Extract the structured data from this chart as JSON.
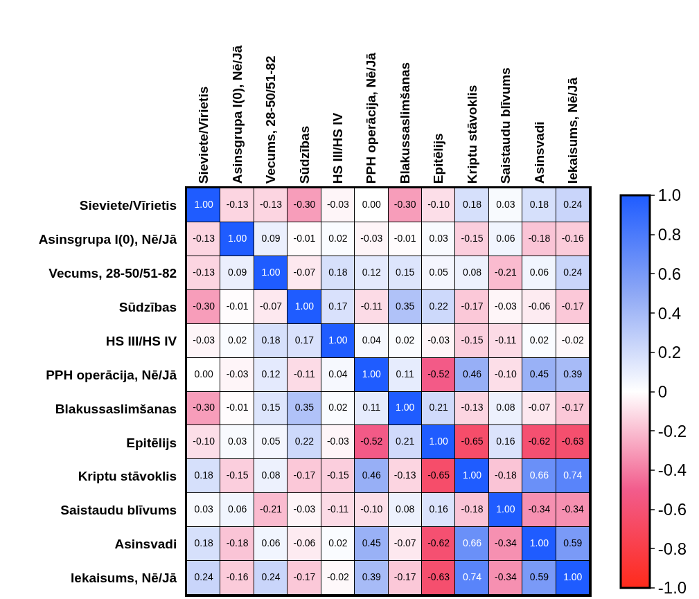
{
  "chart_data": {
    "type": "heatmap",
    "categories": [
      "Sieviete/Vīrietis",
      "Asinsgrupa I(0), Nē/Jā",
      "Vecums, 28-50/51-82",
      "Sūdzības",
      "HS III/HS IV",
      "PPH operācija, Nē/Jā",
      "Blakussaslimšanas",
      "Epitēlijs",
      "Kriptu stāvoklis",
      "Saistaudu blīvums",
      "Asinsvadi",
      "Iekaisums, Nē/Jā"
    ],
    "y_categories": [
      "Sieviete/Vīrietis",
      "Asinsgrupa I(0), Nē/Jā",
      "Vecums, 28-50/51-82",
      "Sūdzības",
      "HS III/HS IV",
      "PPH operācija, Nē/Jā",
      "Blakussaslimšanas",
      "Epitēlijs",
      "Kriptu stāvoklis",
      "Saistaudu blīvums",
      "Asinsvadi",
      "Iekaisums, Nē/Jā"
    ],
    "cells": [
      [
        1.0,
        -0.13,
        -0.13,
        -0.3,
        -0.03,
        0.0,
        -0.3,
        -0.1,
        0.18,
        0.03,
        0.18,
        0.24
      ],
      [
        -0.13,
        1.0,
        0.09,
        -0.01,
        0.02,
        -0.03,
        -0.01,
        0.03,
        -0.15,
        0.06,
        -0.18,
        -0.16
      ],
      [
        -0.13,
        0.09,
        1.0,
        -0.07,
        0.18,
        0.12,
        0.15,
        0.05,
        0.08,
        -0.21,
        0.06,
        0.24
      ],
      [
        -0.3,
        -0.01,
        -0.07,
        1.0,
        0.17,
        -0.11,
        0.35,
        0.22,
        -0.17,
        -0.03,
        -0.06,
        -0.17
      ],
      [
        -0.03,
        0.02,
        0.18,
        0.17,
        1.0,
        0.04,
        0.02,
        -0.03,
        -0.15,
        -0.11,
        0.02,
        -0.02
      ],
      [
        0.0,
        -0.03,
        0.12,
        -0.11,
        0.04,
        1.0,
        0.11,
        -0.52,
        0.46,
        -0.1,
        0.45,
        0.39
      ],
      [
        -0.3,
        -0.01,
        0.15,
        0.35,
        0.02,
        0.11,
        1.0,
        0.21,
        -0.13,
        0.08,
        -0.07,
        -0.17
      ],
      [
        -0.1,
        0.03,
        0.05,
        0.22,
        -0.03,
        -0.52,
        0.21,
        1.0,
        -0.65,
        0.16,
        -0.62,
        -0.63
      ],
      [
        0.18,
        -0.15,
        0.08,
        -0.17,
        -0.15,
        0.46,
        -0.13,
        -0.65,
        1.0,
        -0.18,
        0.66,
        0.74
      ],
      [
        0.03,
        0.06,
        -0.21,
        -0.03,
        -0.11,
        -0.1,
        0.08,
        0.16,
        -0.18,
        1.0,
        -0.34,
        -0.34
      ],
      [
        0.18,
        -0.18,
        0.06,
        -0.06,
        0.02,
        0.45,
        -0.07,
        -0.62,
        0.66,
        -0.34,
        1.0,
        0.59
      ],
      [
        0.24,
        -0.16,
        0.24,
        -0.17,
        -0.02,
        0.39,
        -0.17,
        -0.63,
        0.74,
        -0.34,
        0.59,
        1.0
      ]
    ],
    "cell_labels": [
      [
        "1.00",
        "-0.13",
        "-0.13",
        "-0.30",
        "-0.03",
        "0.00",
        "-0.30",
        "-0.10",
        "0.18",
        "0.03",
        "0.18",
        "0.24"
      ],
      [
        "-0.13",
        "1.00",
        "0.09",
        "-0.01",
        "0.02",
        "-0.03",
        "-0.01",
        "0.03",
        "-0.15",
        "0.06",
        "-0.18",
        "-0.16"
      ],
      [
        "-0.13",
        "0.09",
        "1.00",
        "-0.07",
        "0.18",
        "0.12",
        "0.15",
        "0.05",
        "0.08",
        "-0.21",
        "0.06",
        "0.24"
      ],
      [
        "-0.30",
        "-0.01",
        "-0.07",
        "1.00",
        "0.17",
        "-0.11",
        "0.35",
        "0.22",
        "-0.17",
        "-0.03",
        "-0.06",
        "-0.17"
      ],
      [
        "-0.03",
        "0.02",
        "0.18",
        "0.17",
        "1.00",
        "0.04",
        "0.02",
        "-0.03",
        "-0.15",
        "-0.11",
        "0.02",
        "-0.02"
      ],
      [
        "0.00",
        "-0.03",
        "0.12",
        "-0.11",
        "0.04",
        "1.00",
        "0.11",
        "-0.52",
        "0.46",
        "-0.10",
        "0.45",
        "0.39"
      ],
      [
        "-0.30",
        "-0.01",
        "0.15",
        "0.35",
        "0.02",
        "0.11",
        "1.00",
        "0.21",
        "-0.13",
        "0.08",
        "-0.07",
        "-0.17"
      ],
      [
        "-0.10",
        "0.03",
        "0.05",
        "0.22",
        "-0.03",
        "-0.52",
        "0.21",
        "1.00",
        "-0.65",
        "0.16",
        "-0.62",
        "-0.63"
      ],
      [
        "0.18",
        "-0.15",
        "0.08",
        "-0.17",
        "-0.15",
        "0.46",
        "-0.13",
        "-0.65",
        "1.00",
        "-0.18",
        "0.66",
        "0.74"
      ],
      [
        "0.03",
        "0.06",
        "-0.21",
        "-0.03",
        "-0.11",
        "-0.10",
        "0.08",
        "0.16",
        "-0.18",
        "1.00",
        "-0.34",
        "-0.34"
      ],
      [
        "0.18",
        "-0.18",
        "0.06",
        "-0.06",
        "0.02",
        "0.45",
        "-0.07",
        "-0.62",
        "0.66",
        "-0.34",
        "1.00",
        "0.59"
      ],
      [
        "0.24",
        "-0.16",
        "0.24",
        "-0.17",
        "-0.02",
        "0.39",
        "-0.17",
        "-0.63",
        "0.74",
        "-0.34",
        "0.59",
        "1.00"
      ]
    ],
    "clim": [
      -1.0,
      1.0
    ],
    "cticks": [
      {
        "value": -1.0,
        "label": "-1.0"
      },
      {
        "value": -0.8,
        "label": "-0.8"
      },
      {
        "value": -0.6,
        "label": "-0.6"
      },
      {
        "value": -0.4,
        "label": "-0.4"
      },
      {
        "value": -0.2,
        "label": "-0.2"
      },
      0,
      {
        "value": 0.2,
        "label": "0.2"
      },
      {
        "value": 0.4,
        "label": "0.4"
      },
      {
        "value": 0.6,
        "label": "0.6"
      },
      {
        "value": 0.8,
        "label": "0.8"
      },
      {
        "value": 1.0,
        "label": "1.0"
      }
    ]
  }
}
